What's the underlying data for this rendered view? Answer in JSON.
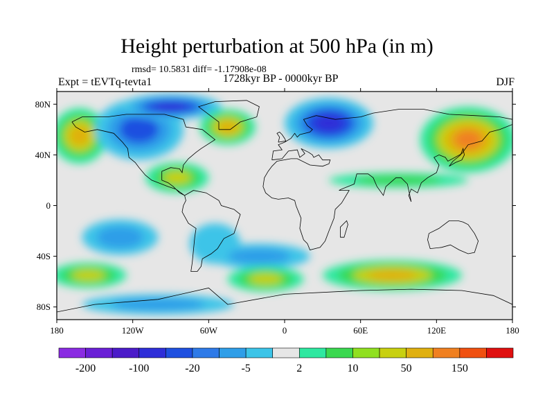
{
  "title": "Height perturbation at 500 hPa (in m)",
  "stats_text": "rmsd= 10.5831 diff= -1.17908e-08",
  "left_label": "Expt = tEVTq-tevta1",
  "center_label": "1728kyr BP - 0000kyr BP",
  "right_label": "DJF",
  "map": {
    "projection": "cylindrical-equidistant",
    "lon_range": [
      -180,
      180
    ],
    "lat_range": [
      -90,
      90
    ],
    "lat_ticks": [
      {
        "value": 80,
        "label": "80N"
      },
      {
        "value": 40,
        "label": "40N"
      },
      {
        "value": 0,
        "label": "0"
      },
      {
        "value": -40,
        "label": "40S"
      },
      {
        "value": -80,
        "label": "80S"
      }
    ],
    "lon_ticks": [
      {
        "value": -180,
        "label": "180"
      },
      {
        "value": -120,
        "label": "120W"
      },
      {
        "value": -60,
        "label": "60W"
      },
      {
        "value": 0,
        "label": "0"
      },
      {
        "value": 60,
        "label": "60E"
      },
      {
        "value": 120,
        "label": "120E"
      },
      {
        "value": 180,
        "label": "180"
      }
    ]
  },
  "colorbar": {
    "colors": [
      "#8a2be2",
      "#6a1fd6",
      "#4b1bc9",
      "#2e2ed8",
      "#1e50e0",
      "#2e7ae8",
      "#2f9ee8",
      "#3cc4e8",
      "#e6e6e6",
      "#2ee8a0",
      "#3ad850",
      "#90e020",
      "#c8d010",
      "#e0b010",
      "#f08020",
      "#f05010",
      "#e01010"
    ],
    "labels": [
      {
        "after_box": 1,
        "text": "-200"
      },
      {
        "after_box": 3,
        "text": "-100"
      },
      {
        "after_box": 5,
        "text": "-20"
      },
      {
        "after_box": 7,
        "text": "-5"
      },
      {
        "after_box": 9,
        "text": "2"
      },
      {
        "after_box": 11,
        "text": "10"
      },
      {
        "after_box": 13,
        "text": "50"
      },
      {
        "after_box": 15,
        "text": "150"
      }
    ]
  },
  "field_palette": {
    "background": "#e6e6e6",
    "neg_weak": "#3cc4e8",
    "neg_mid": "#2f9ee8",
    "neg_strong": "#1e50e0",
    "neg_max": "#2e2ed8",
    "pos_weak": "#2ee8a0",
    "pos_mid": "#3ad850",
    "pos_strong": "#c8d010",
    "pos_max": "#e0b010",
    "pos_peak": "#f08020"
  },
  "anomalies": [
    {
      "name": "pacific-north-positive",
      "lon": -162,
      "lat": 55,
      "rlon": 22,
      "rlat": 22,
      "level": 4
    },
    {
      "name": "north-america-negative",
      "lon": -115,
      "lat": 60,
      "rlon": 35,
      "rlat": 24,
      "level": -3
    },
    {
      "name": "arctic-canada-negative",
      "lon": -90,
      "lat": 78,
      "rlon": 40,
      "rlat": 10,
      "level": -4
    },
    {
      "name": "north-atlantic-positive",
      "lon": -45,
      "lat": 62,
      "rlon": 22,
      "rlat": 14,
      "level": 4
    },
    {
      "name": "eurasia-negative",
      "lon": 35,
      "lat": 65,
      "rlon": 35,
      "rlat": 20,
      "level": -4
    },
    {
      "name": "siberia-pacific-positive",
      "lon": 145,
      "lat": 52,
      "rlon": 38,
      "rlat": 26,
      "level": 5
    },
    {
      "name": "caribbean-positive",
      "lon": -85,
      "lat": 22,
      "rlon": 25,
      "rlat": 12,
      "level": 3
    },
    {
      "name": "subtropical-asia-positive",
      "lon": 90,
      "lat": 20,
      "rlon": 55,
      "rlat": 6,
      "level": 2
    },
    {
      "name": "south-pacific-negative",
      "lon": -130,
      "lat": -25,
      "rlon": 30,
      "rlat": 14,
      "level": -2
    },
    {
      "name": "south-america-negative",
      "lon": -55,
      "lat": -30,
      "rlon": 20,
      "rlat": 16,
      "level": -1
    },
    {
      "name": "south-atlantic-negative",
      "lon": -20,
      "lat": -40,
      "rlon": 40,
      "rlat": 10,
      "level": -2
    },
    {
      "name": "southern-pacific-positive",
      "lon": -155,
      "lat": -55,
      "rlon": 30,
      "rlat": 10,
      "level": 3
    },
    {
      "name": "southern-atlantic-positive",
      "lon": -15,
      "lat": -58,
      "rlon": 30,
      "rlat": 10,
      "level": 3
    },
    {
      "name": "southern-indian-positive",
      "lon": 85,
      "lat": -55,
      "rlon": 55,
      "rlat": 12,
      "level": 4
    },
    {
      "name": "antarctic-negative",
      "lon": -100,
      "lat": -78,
      "rlon": 60,
      "rlat": 8,
      "level": -2
    }
  ]
}
